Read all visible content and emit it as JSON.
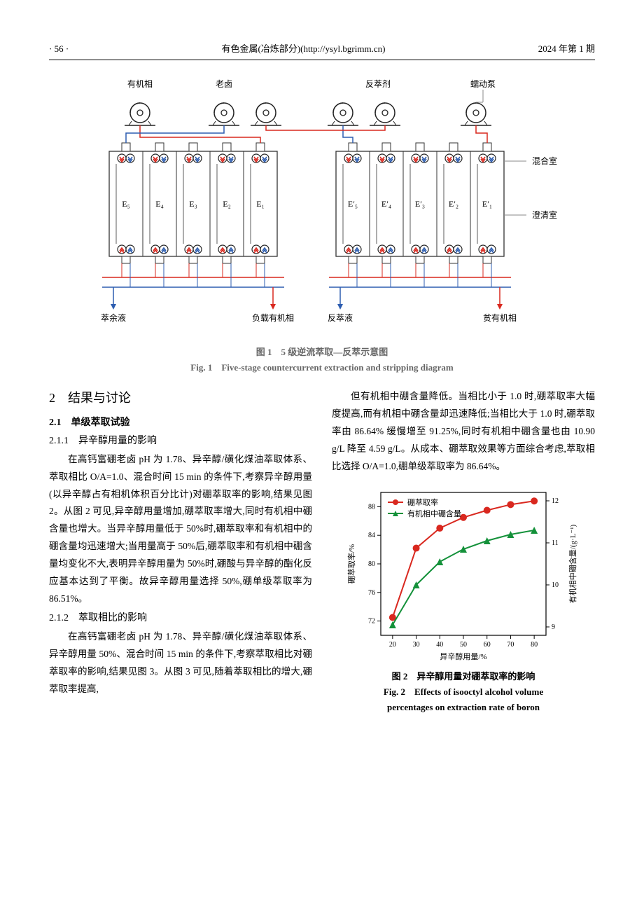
{
  "header": {
    "page_num": "· 56 ·",
    "journal": "有色金属(冶炼部分)(http://ysyl.bgrimm.cn)",
    "issue": "2024 年第 1 期"
  },
  "fig1": {
    "labels": {
      "organic_phase": "有机相",
      "old_brine": "老卤",
      "strip_agent": "反萃剂",
      "peristaltic_pump": "蠕动泵",
      "mixing_chamber": "混合室",
      "clarify_chamber": "澄清室",
      "raffinate": "萃余液",
      "loaded_organic": "负载有机相",
      "strip_liquid": "反萃液",
      "lean_organic": "贫有机相"
    },
    "left_cells": [
      "E₅",
      "E₄",
      "E₃",
      "E₂",
      "E₁"
    ],
    "right_cells": [
      "E′₅",
      "E′₄",
      "E′₃",
      "E′₂",
      "E′₁"
    ],
    "caption_zh": "图 1　5 级逆流萃取—反萃示意图",
    "caption_en": "Fig. 1　Five-stage countercurrent extraction and stripping diagram",
    "colors": {
      "red": "#d9281f",
      "blue": "#2d5db0",
      "gray": "#888888",
      "black": "#222222",
      "box_stroke": "#333333"
    }
  },
  "section": {
    "num": "2",
    "title": "结果与讨论",
    "sub1": "2.1　单级萃取试验",
    "sub1_1": "2.1.1　异辛醇用量的影响",
    "p1": "在高钙富硼老卤 pH 为 1.78、异辛醇/磺化煤油萃取体系、萃取相比 O/A=1.0、混合时间 15 min 的条件下,考察异辛醇用量(以异辛醇占有相机体积百分比计)对硼萃取率的影响,结果见图 2。从图 2 可见,异辛醇用量增加,硼萃取率增大,同时有机相中硼含量也增大。当异辛醇用量低于 50%时,硼萃取率和有机相中的硼含量均迅速增大;当用量高于 50%后,硼萃取率和有机相中硼含量均变化不大,表明异辛醇用量为 50%时,硼酸与异辛醇的酯化反应基本达到了平衡。故异辛醇用量选择 50%,硼单级萃取率为 86.51%。",
    "sub1_2": "2.1.2　萃取相比的影响",
    "p2": "在高钙富硼老卤 pH 为 1.78、异辛醇/磺化煤油萃取体系、异辛醇用量 50%、混合时间 15 min 的条件下,考察萃取相比对硼萃取率的影响,结果见图 3。从图 3 可见,随着萃取相比的增大,硼萃取率提高,",
    "p3": "但有机相中硼含量降低。当相比小于 1.0 时,硼萃取率大幅度提高,而有机相中硼含量却迅速降低;当相比大于 1.0 时,硼萃取率由 86.64% 缓慢增至 91.25%,同时有机相中硼含量也由 10.90 g/L 降至 4.59 g/L。从成本、硼萃取效果等方面综合考虑,萃取相比选择 O/A=1.0,硼单级萃取率为 86.64%。"
  },
  "fig2": {
    "caption_zh": "图 2　异辛醇用量对硼萃取率的影响",
    "caption_en_l1": "Fig. 2　Effects of isooctyl alcohol volume",
    "caption_en_l2": "percentages on extraction rate of boron",
    "x_label": "异辛醇用量/%",
    "y1_label": "硼萃取率/%",
    "y2_label": "有机相中硼含量/(g·L⁻¹)",
    "legend": {
      "series1": "硼萃取率",
      "series2": "有机相中硼含量"
    },
    "x_ticks": [
      20,
      30,
      40,
      50,
      60,
      70,
      80
    ],
    "y1_ticks": [
      72,
      76,
      80,
      84,
      88
    ],
    "y2_ticks": [
      9,
      10,
      11,
      12
    ],
    "xlim": [
      15,
      85
    ],
    "y1_lim": [
      70,
      90
    ],
    "y2_lim": [
      8.8,
      12.2
    ],
    "series1": {
      "x": [
        20,
        30,
        40,
        50,
        60,
        70,
        80
      ],
      "y": [
        72.5,
        82.2,
        85.0,
        86.5,
        87.5,
        88.3,
        88.8
      ],
      "color": "#d9281f",
      "marker": "circle"
    },
    "series2": {
      "x": [
        20,
        30,
        40,
        50,
        60,
        70,
        80
      ],
      "y": [
        9.05,
        10.0,
        10.55,
        10.85,
        11.05,
        11.2,
        11.3
      ],
      "color": "#14913a",
      "marker": "triangle"
    },
    "bg": "#ffffff",
    "axis_color": "#000000",
    "tick_fontsize": 10,
    "label_fontsize": 11,
    "line_width": 2,
    "marker_size": 5
  }
}
